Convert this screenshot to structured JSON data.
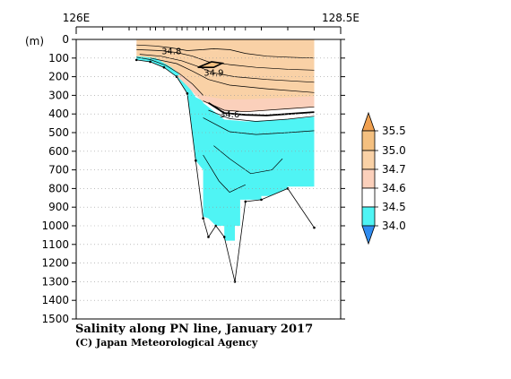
{
  "chart_data": {
    "type": "heatmap",
    "title": "Salinity along PN line, January 2017",
    "credit": "(C) Japan Meteorological Agency",
    "x_axis": {
      "labels": [
        "126E",
        "128.5E"
      ],
      "range": [
        126.0,
        128.5
      ]
    },
    "y_axis": {
      "unit_label": "(m)",
      "ticks": [
        0,
        100,
        200,
        300,
        400,
        500,
        600,
        700,
        800,
        900,
        1000,
        1100,
        1200,
        1300,
        1400,
        1500
      ],
      "range": [
        0,
        1500
      ],
      "inverted": true
    },
    "grid": false,
    "station_longitudes": [
      126.57,
      126.7,
      126.83,
      126.95,
      127.05,
      127.13,
      127.2,
      127.25,
      127.32,
      127.4,
      127.5,
      127.6,
      127.75,
      128.0,
      128.25
    ],
    "seafloor_depth": [
      110,
      120,
      150,
      200,
      290,
      650,
      960,
      1060,
      1000,
      1060,
      1300,
      870,
      860,
      800,
      1010
    ],
    "contour_labels": [
      {
        "text": "34.8",
        "lon": 126.9,
        "depth": 65
      },
      {
        "text": "34.9",
        "lon": 127.3,
        "depth": 180
      },
      {
        "text": "34.6",
        "lon": 127.45,
        "depth": 405
      }
    ],
    "colorbar": {
      "levels": [
        "35.5",
        "35.0",
        "34.7",
        "34.6",
        "34.5",
        "34.0"
      ],
      "colors": {
        "above_35_5": "#f0a050",
        "35_0_to_35_5": "#f4c080",
        "34_7_to_35_0": "#f9d1a6",
        "34_6_to_34_7": "#fbd0bb",
        "34_5_to_34_6": "#ffffff",
        "34_0_to_34_5": "#4ff4f4",
        "below_34_0": "#2f8cf0"
      }
    }
  }
}
